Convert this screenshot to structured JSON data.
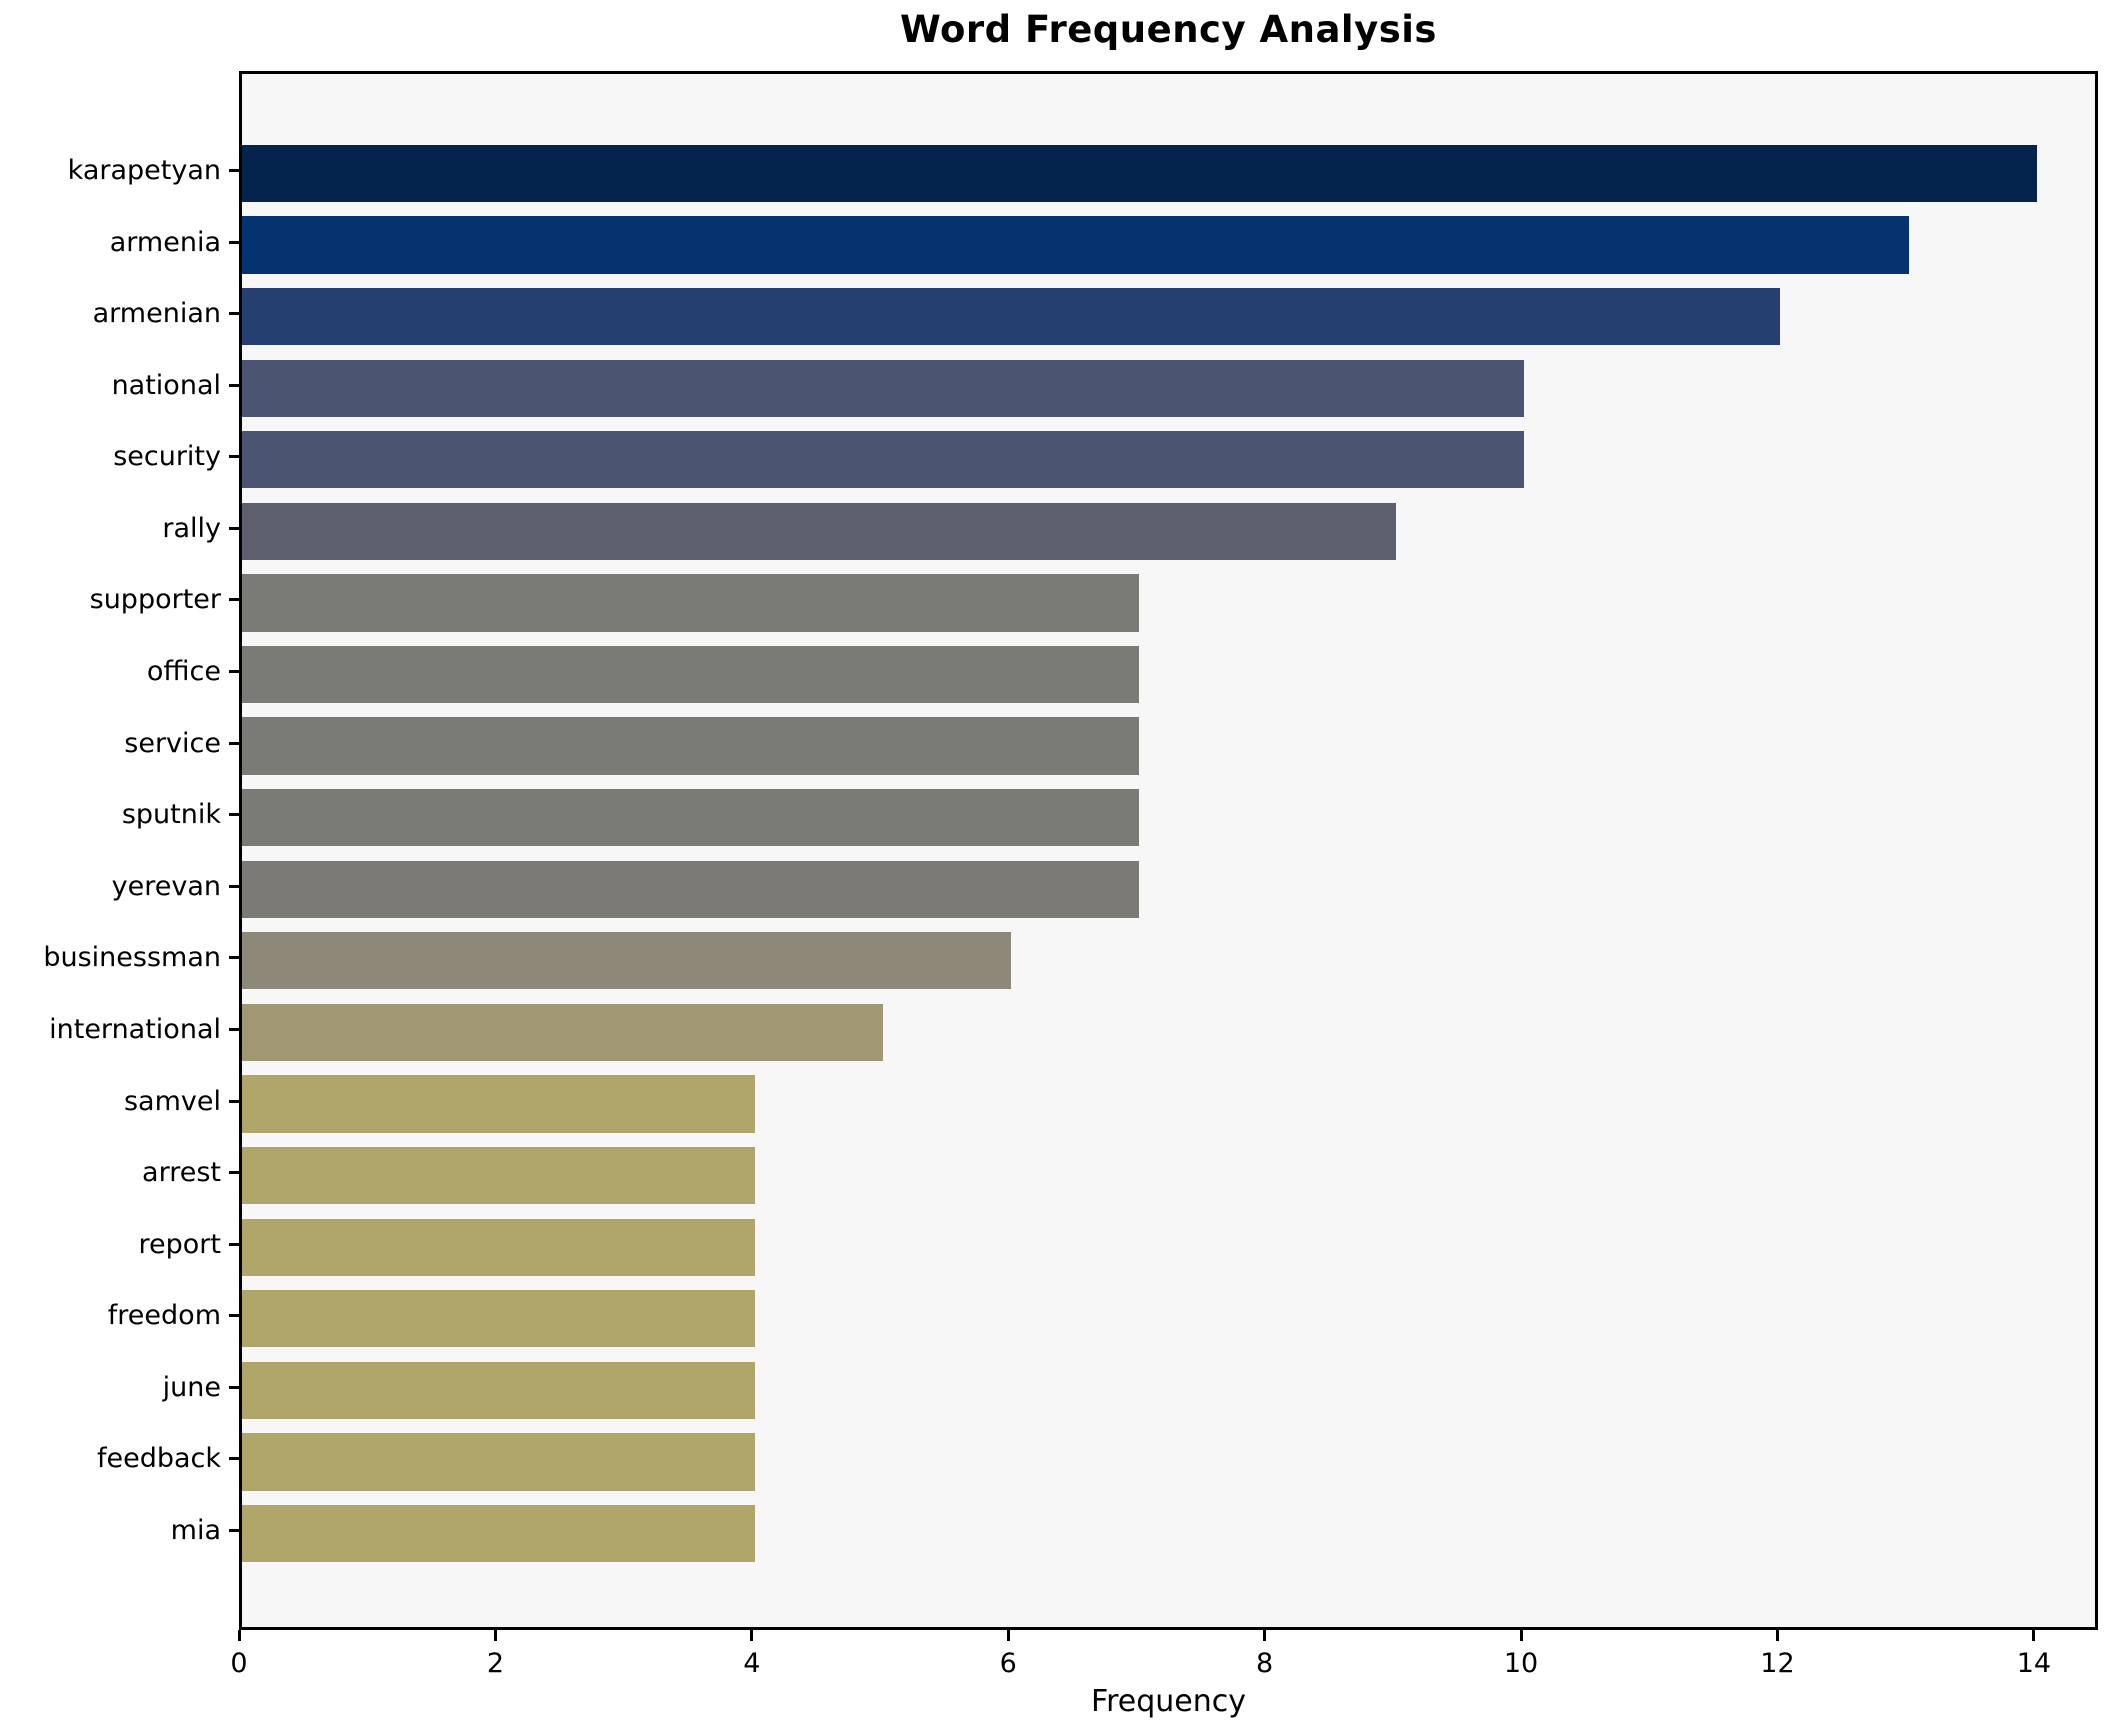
{
  "chart_data": {
    "type": "bar",
    "orientation": "horizontal",
    "title": "Word Frequency Analysis",
    "xlabel": "Frequency",
    "ylabel": "",
    "categories": [
      "karapetyan",
      "armenia",
      "armenian",
      "national",
      "security",
      "rally",
      "supporter",
      "office",
      "service",
      "sputnik",
      "yerevan",
      "businessman",
      "international",
      "samvel",
      "arrest",
      "report",
      "freedom",
      "june",
      "feedback",
      "mia"
    ],
    "values": [
      14,
      13,
      12,
      10,
      10,
      9,
      7,
      7,
      7,
      7,
      7,
      6,
      5,
      4,
      4,
      4,
      4,
      4,
      4,
      4
    ],
    "bar_colors": [
      "#04234d",
      "#05336f",
      "#254070",
      "#4b5571",
      "#4b5571",
      "#5c606e",
      "#7b7b76",
      "#7b7b76",
      "#7b7b76",
      "#7b7b76",
      "#7b7a74",
      "#8e8878",
      "#9f9872",
      "#b0a669",
      "#b0a669",
      "#b0a669",
      "#b0a669",
      "#b0a669",
      "#b0a669",
      "#b0a669"
    ],
    "xlim": [
      0,
      14.5
    ],
    "x_ticks": [
      0,
      2,
      4,
      6,
      8,
      10,
      12,
      14
    ],
    "grid": false,
    "legend_position": "none",
    "plot_background": "#f7f7f7",
    "figure_background": "#ffffff",
    "spine_color": "#000000"
  }
}
